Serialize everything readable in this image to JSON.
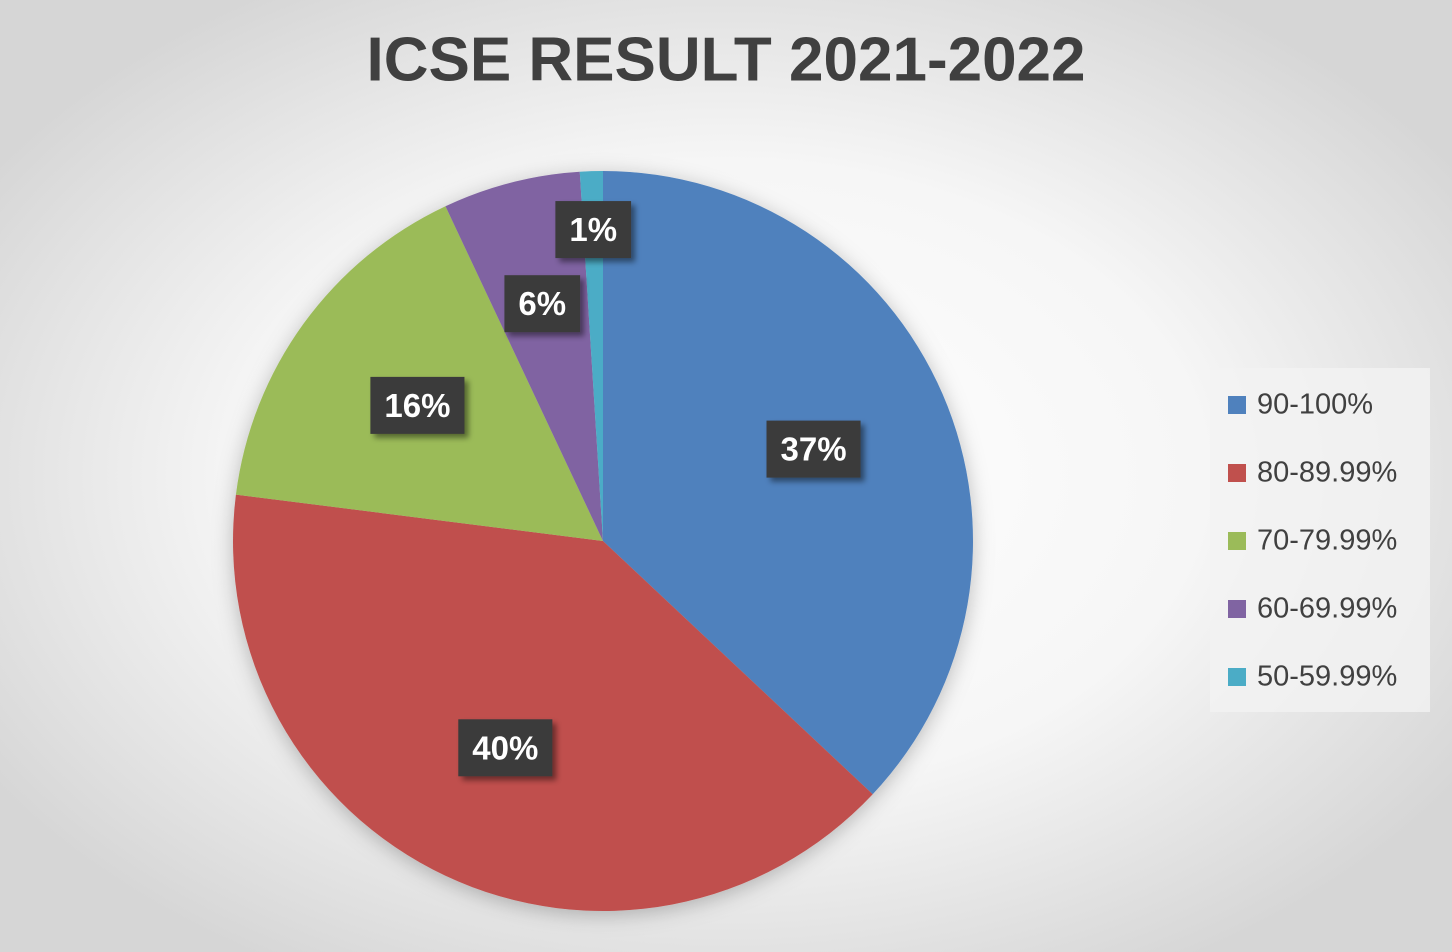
{
  "chart_data": {
    "type": "pie",
    "title": "ICSE RESULT 2021-2022",
    "categories": [
      "90-100%",
      "80-89.99%",
      "70-79.99%",
      "60-69.99%",
      "50-59.99%"
    ],
    "values": [
      37,
      40,
      16,
      6,
      1
    ],
    "value_labels": [
      "37%",
      "40%",
      "16%",
      "6%",
      "1%"
    ],
    "colors": [
      "#4f81bd",
      "#c0504d",
      "#9bbb59",
      "#8064a2",
      "#4bacc6"
    ],
    "legend": "right"
  }
}
